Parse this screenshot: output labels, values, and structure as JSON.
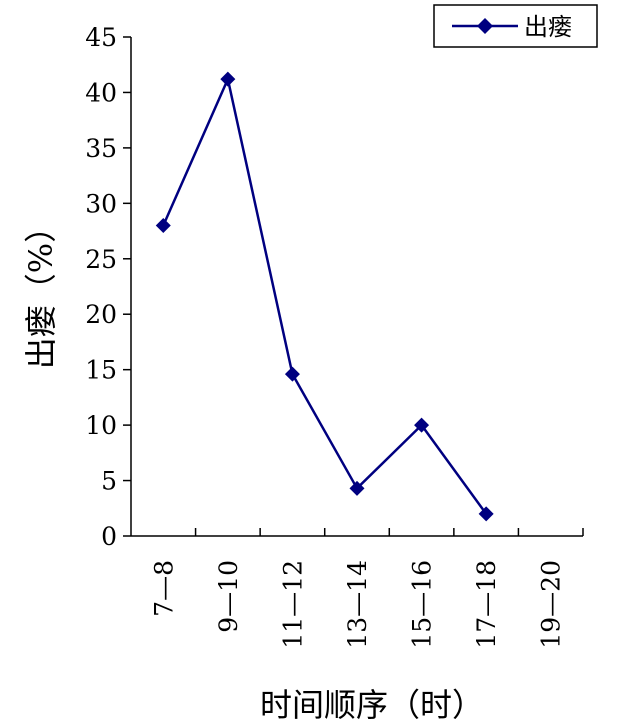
{
  "chart_data": {
    "type": "line",
    "categories": [
      "7—8",
      "9—10",
      "11—12",
      "13—14",
      "15—16",
      "17—18",
      "19—20"
    ],
    "series": [
      {
        "name": "出瘘",
        "values": [
          28,
          41.2,
          14.6,
          4.3,
          10,
          2,
          null
        ]
      }
    ],
    "xlabel": "时间顺序（时）",
    "ylabel": "出瘘（%）",
    "ylim": [
      0,
      45
    ],
    "yticks": [
      0,
      5,
      10,
      15,
      20,
      25,
      30,
      35,
      40,
      45
    ],
    "grid": false,
    "legend_position": "top-right",
    "colors": {
      "series": "#000080",
      "axis": "#000000"
    }
  }
}
